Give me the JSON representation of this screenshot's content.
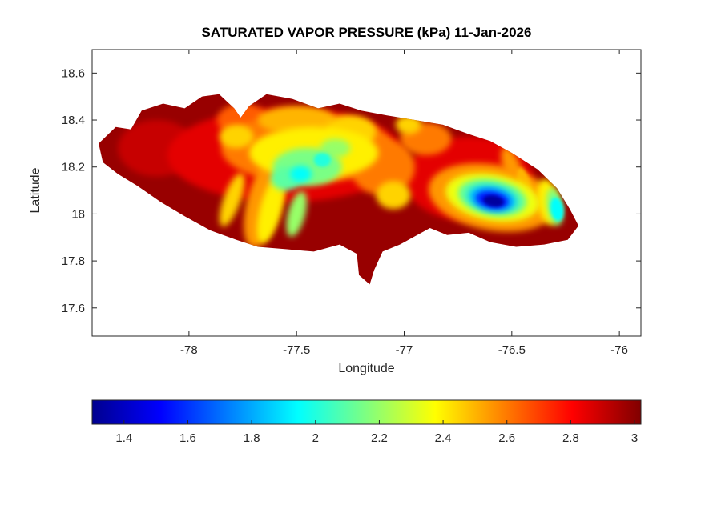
{
  "figure": {
    "background": "#ffffff"
  },
  "chart_data": {
    "type": "heatmap",
    "subtype": "filled_contour_map",
    "title": "SATURATED VAPOR PRESSURE (kPa) 11-Jan-2026",
    "xlabel": "Longitude",
    "ylabel": "Latitude",
    "units": "kPa",
    "region_shape": "Jamaica",
    "xlim": [
      -78.45,
      -75.9
    ],
    "ylim": [
      17.48,
      18.7
    ],
    "xticks": {
      "values": [
        -78,
        -77.5,
        -77,
        -76.5,
        -76
      ],
      "labels": [
        "-78",
        "-77.5",
        "-77",
        "-76.5",
        "-76"
      ]
    },
    "yticks": {
      "values": [
        17.6,
        17.8,
        18,
        18.2,
        18.4,
        18.6
      ],
      "labels": [
        "17.6",
        "17.8",
        "18",
        "18.2",
        "18.4",
        "18.6"
      ]
    },
    "grid": false,
    "colorbar": {
      "orientation": "horizontal",
      "position": "below",
      "clim": [
        1.3,
        3.02
      ],
      "ticks": {
        "values": [
          1.4,
          1.6,
          1.8,
          2,
          2.2,
          2.4,
          2.6,
          2.8,
          3
        ],
        "labels": [
          "1.4",
          "1.6",
          "1.8",
          "2",
          "2.2",
          "2.4",
          "2.6",
          "2.8",
          "3"
        ]
      }
    },
    "colormap": {
      "name": "jet",
      "stops": [
        [
          0.0,
          "#00008f"
        ],
        [
          0.125,
          "#0000ff"
        ],
        [
          0.375,
          "#00ffff"
        ],
        [
          0.625,
          "#ffff00"
        ],
        [
          0.875,
          "#ff0000"
        ],
        [
          1.0,
          "#800000"
        ]
      ]
    },
    "extremes": {
      "min_value": 1.3,
      "min_location": [
        -76.59,
        18.06
      ],
      "max_value": 3.0,
      "max_note": "dark red along coasts and western interior"
    },
    "base_value": 2.98,
    "coastline": [
      [
        -78.4,
        18.22
      ],
      [
        -78.42,
        18.3
      ],
      [
        -78.34,
        18.37
      ],
      [
        -78.27,
        18.36
      ],
      [
        -78.22,
        18.44
      ],
      [
        -78.12,
        18.47
      ],
      [
        -78.02,
        18.45
      ],
      [
        -77.94,
        18.5
      ],
      [
        -77.86,
        18.51
      ],
      [
        -77.79,
        18.45
      ],
      [
        -77.76,
        18.41
      ],
      [
        -77.72,
        18.46
      ],
      [
        -77.64,
        18.51
      ],
      [
        -77.52,
        18.49
      ],
      [
        -77.4,
        18.45
      ],
      [
        -77.3,
        18.47
      ],
      [
        -77.2,
        18.44
      ],
      [
        -77.08,
        18.42
      ],
      [
        -76.95,
        18.4
      ],
      [
        -76.82,
        18.38
      ],
      [
        -76.7,
        18.34
      ],
      [
        -76.6,
        18.31
      ],
      [
        -76.5,
        18.26
      ],
      [
        -76.38,
        18.19
      ],
      [
        -76.29,
        18.11
      ],
      [
        -76.23,
        18.02
      ],
      [
        -76.19,
        17.95
      ],
      [
        -76.24,
        17.89
      ],
      [
        -76.35,
        17.87
      ],
      [
        -76.48,
        17.86
      ],
      [
        -76.6,
        17.88
      ],
      [
        -76.7,
        17.92
      ],
      [
        -76.8,
        17.91
      ],
      [
        -76.88,
        17.94
      ],
      [
        -76.96,
        17.9
      ],
      [
        -77.02,
        17.87
      ],
      [
        -77.1,
        17.84
      ],
      [
        -77.14,
        17.76
      ],
      [
        -77.16,
        17.7
      ],
      [
        -77.21,
        17.74
      ],
      [
        -77.22,
        17.83
      ],
      [
        -77.3,
        17.87
      ],
      [
        -77.42,
        17.84
      ],
      [
        -77.55,
        17.85
      ],
      [
        -77.68,
        17.86
      ],
      [
        -77.78,
        17.89
      ],
      [
        -77.9,
        17.93
      ],
      [
        -78.02,
        17.99
      ],
      [
        -78.13,
        18.05
      ],
      [
        -78.24,
        18.12
      ],
      [
        -78.33,
        18.17
      ]
    ],
    "features": [
      {
        "lon": -77.55,
        "lat": 18.25,
        "rx": 0.55,
        "ry": 0.2,
        "rot": 0,
        "value": 2.85
      },
      {
        "lon": -78.15,
        "lat": 18.28,
        "rx": 0.18,
        "ry": 0.12,
        "rot": 0,
        "value": 2.9
      },
      {
        "lon": -76.7,
        "lat": 18.15,
        "rx": 0.3,
        "ry": 0.18,
        "rot": 0,
        "value": 2.85
      },
      {
        "lon": -77.45,
        "lat": 18.28,
        "rx": 0.4,
        "ry": 0.15,
        "rot": 0,
        "value": 2.6
      },
      {
        "lon": -77.75,
        "lat": 18.4,
        "rx": 0.12,
        "ry": 0.07,
        "rot": 0,
        "value": 2.65
      },
      {
        "lon": -77.1,
        "lat": 18.2,
        "rx": 0.15,
        "ry": 0.12,
        "rot": 0,
        "value": 2.6
      },
      {
        "lon": -76.59,
        "lat": 18.07,
        "rx": 0.3,
        "ry": 0.14,
        "rot": 10,
        "value": 2.55
      },
      {
        "lon": -77.65,
        "lat": 18.05,
        "rx": 0.08,
        "ry": 0.2,
        "rot": 15,
        "value": 2.55
      },
      {
        "lon": -76.9,
        "lat": 18.32,
        "rx": 0.12,
        "ry": 0.07,
        "rot": 0,
        "value": 2.6
      },
      {
        "lon": -76.5,
        "lat": 18.2,
        "rx": 0.04,
        "ry": 0.09,
        "rot": -20,
        "value": 2.55
      },
      {
        "lon": -76.44,
        "lat": 18.12,
        "rx": 0.03,
        "ry": 0.08,
        "rot": -15,
        "value": 2.5
      },
      {
        "lon": -77.5,
        "lat": 18.4,
        "rx": 0.18,
        "ry": 0.06,
        "rot": 0,
        "value": 2.5
      },
      {
        "lon": -77.42,
        "lat": 18.26,
        "rx": 0.3,
        "ry": 0.11,
        "rot": 0,
        "value": 2.4
      },
      {
        "lon": -77.25,
        "lat": 18.35,
        "rx": 0.12,
        "ry": 0.07,
        "rot": 0,
        "value": 2.45
      },
      {
        "lon": -77.78,
        "lat": 18.33,
        "rx": 0.08,
        "ry": 0.05,
        "rot": 0,
        "value": 2.45
      },
      {
        "lon": -77.62,
        "lat": 18.02,
        "rx": 0.05,
        "ry": 0.15,
        "rot": 15,
        "value": 2.4
      },
      {
        "lon": -77.8,
        "lat": 18.06,
        "rx": 0.04,
        "ry": 0.12,
        "rot": 20,
        "value": 2.45
      },
      {
        "lon": -76.59,
        "lat": 18.07,
        "rx": 0.22,
        "ry": 0.1,
        "rot": 10,
        "value": 2.35
      },
      {
        "lon": -77.05,
        "lat": 18.08,
        "rx": 0.08,
        "ry": 0.06,
        "rot": 0,
        "value": 2.45
      },
      {
        "lon": -76.33,
        "lat": 18.05,
        "rx": 0.05,
        "ry": 0.1,
        "rot": -10,
        "value": 2.4
      },
      {
        "lon": -76.98,
        "lat": 18.38,
        "rx": 0.06,
        "ry": 0.04,
        "rot": 0,
        "value": 2.45
      },
      {
        "lon": -77.45,
        "lat": 18.2,
        "rx": 0.16,
        "ry": 0.08,
        "rot": 0,
        "value": 2.15
      },
      {
        "lon": -77.55,
        "lat": 18.15,
        "rx": 0.07,
        "ry": 0.05,
        "rot": 0,
        "value": 2.1
      },
      {
        "lon": -77.32,
        "lat": 18.28,
        "rx": 0.07,
        "ry": 0.04,
        "rot": 0,
        "value": 2.2
      },
      {
        "lon": -76.59,
        "lat": 18.07,
        "rx": 0.16,
        "ry": 0.075,
        "rot": 10,
        "value": 2.1
      },
      {
        "lon": -77.5,
        "lat": 18.0,
        "rx": 0.04,
        "ry": 0.1,
        "rot": 15,
        "value": 2.2
      },
      {
        "lon": -76.3,
        "lat": 18.03,
        "rx": 0.035,
        "ry": 0.08,
        "rot": -10,
        "value": 2.15
      },
      {
        "lon": -77.48,
        "lat": 18.17,
        "rx": 0.05,
        "ry": 0.035,
        "rot": 0,
        "value": 1.95
      },
      {
        "lon": -77.38,
        "lat": 18.23,
        "rx": 0.04,
        "ry": 0.03,
        "rot": 0,
        "value": 2.0
      },
      {
        "lon": -76.59,
        "lat": 18.065,
        "rx": 0.115,
        "ry": 0.055,
        "rot": 10,
        "value": 1.85
      },
      {
        "lon": -76.29,
        "lat": 18.02,
        "rx": 0.03,
        "ry": 0.05,
        "rot": -10,
        "value": 1.95
      },
      {
        "lon": -76.59,
        "lat": 18.06,
        "rx": 0.08,
        "ry": 0.038,
        "rot": 10,
        "value": 1.55
      },
      {
        "lon": -76.585,
        "lat": 18.055,
        "rx": 0.048,
        "ry": 0.024,
        "rot": 10,
        "value": 1.33
      }
    ]
  }
}
